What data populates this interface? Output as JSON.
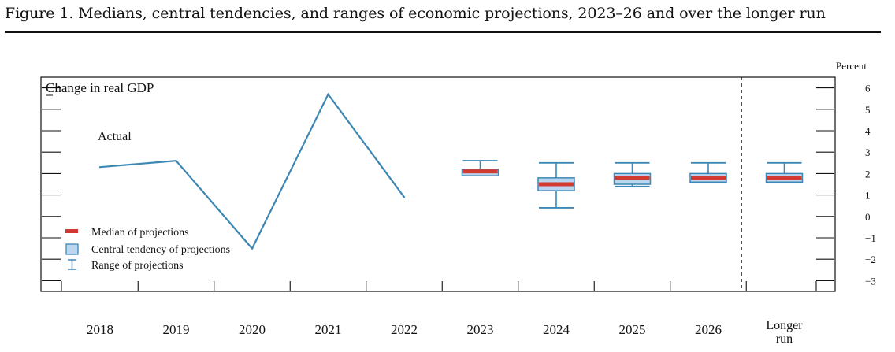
{
  "figure_title": "Figure 1. Medians, central tendencies, and ranges of economic projections, 2023–26 and over the longer run",
  "chart_data": {
    "type": "line",
    "title": "Change in real GDP",
    "ylabel": "Percent",
    "ylim": [
      -3.5,
      6.5
    ],
    "yticks": [
      6,
      5,
      4,
      3,
      2,
      1,
      0,
      -1,
      -2,
      -3
    ],
    "ytick_labels": [
      "6",
      "5",
      "4",
      "3",
      "2",
      "1",
      "0",
      "−1",
      "−2",
      "−3"
    ],
    "categories": [
      "2018",
      "2019",
      "2020",
      "2021",
      "2022",
      "2023",
      "2024",
      "2025",
      "2026",
      "Longer run"
    ],
    "category_labels": [
      [
        "2018"
      ],
      [
        "2019"
      ],
      [
        "2020"
      ],
      [
        "2021"
      ],
      [
        "2022"
      ],
      [
        "2023"
      ],
      [
        "2024"
      ],
      [
        "2025"
      ],
      [
        "2026"
      ],
      [
        "Longer",
        "run"
      ]
    ],
    "actual": {
      "label": "Actual",
      "x": [
        "2018",
        "2019",
        "2020",
        "2021",
        "2022"
      ],
      "values": [
        2.3,
        2.6,
        -1.5,
        5.7,
        0.9
      ]
    },
    "projections": [
      {
        "x": "2023",
        "median": 2.1,
        "ct_low": 1.9,
        "ct_high": 2.2,
        "range_low": 1.9,
        "range_high": 2.6
      },
      {
        "x": "2024",
        "median": 1.5,
        "ct_low": 1.2,
        "ct_high": 1.8,
        "range_low": 0.4,
        "range_high": 2.5
      },
      {
        "x": "2025",
        "median": 1.8,
        "ct_low": 1.5,
        "ct_high": 2.0,
        "range_low": 1.4,
        "range_high": 2.5
      },
      {
        "x": "2026",
        "median": 1.8,
        "ct_low": 1.6,
        "ct_high": 2.0,
        "range_low": 1.6,
        "range_high": 2.5
      },
      {
        "x": "Longer run",
        "median": 1.8,
        "ct_low": 1.6,
        "ct_high": 2.0,
        "range_low": 1.6,
        "range_high": 2.5
      }
    ],
    "legend": {
      "position": "bottom-left",
      "items": [
        {
          "key": "median",
          "label": "Median of projections"
        },
        {
          "key": "central",
          "label": "Central tendency of projections"
        },
        {
          "key": "range",
          "label": "Range of projections"
        }
      ]
    },
    "colors": {
      "line": "#3d87b4",
      "box_fill": "#bcd6ef",
      "box_stroke": "#3d87b4",
      "median": "#d03a30",
      "axis": "#111111"
    },
    "grid": false
  }
}
